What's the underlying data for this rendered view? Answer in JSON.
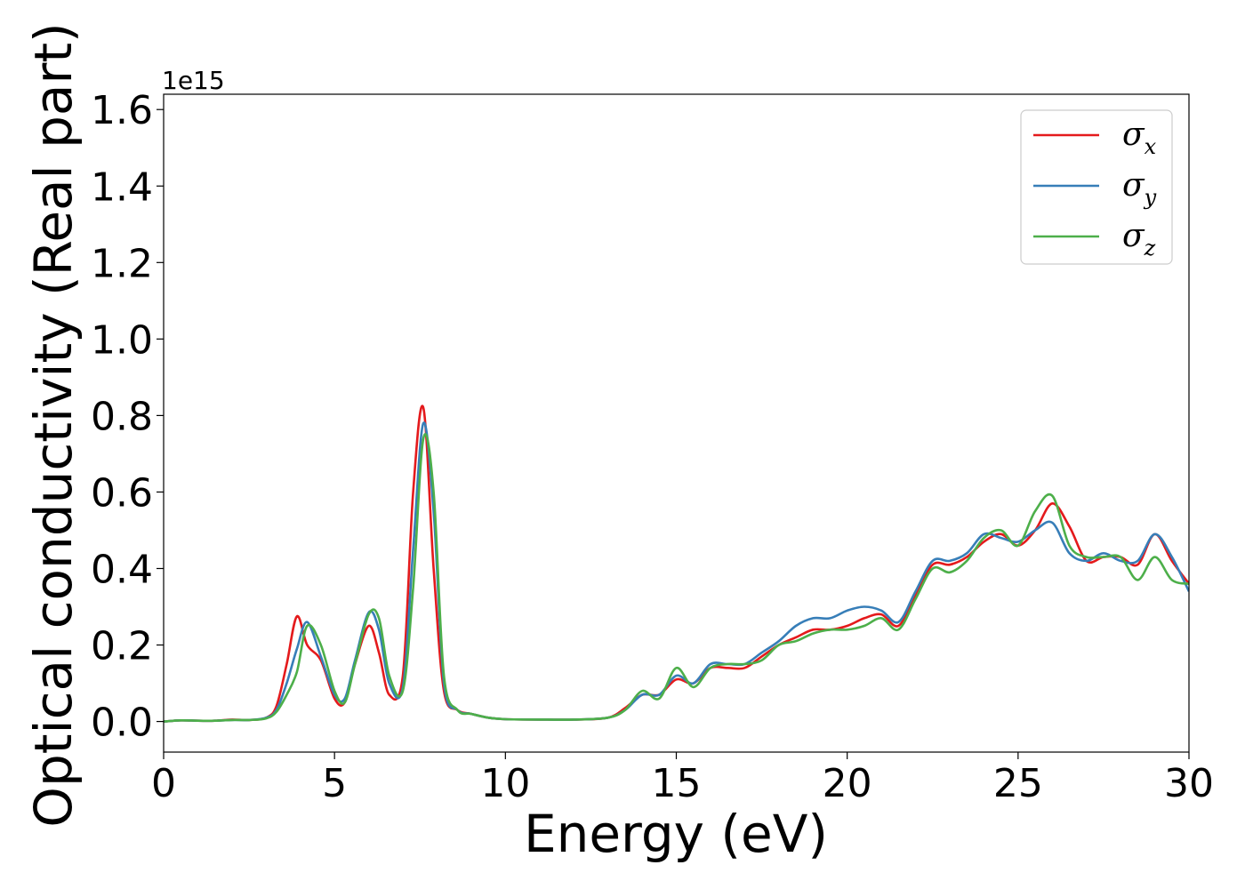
{
  "chart_data": {
    "type": "line",
    "xlabel": "Energy (eV)",
    "ylabel": "Optical conductivity (Real part)",
    "y_offset_text": "1e15",
    "xlim": [
      0,
      30
    ],
    "ylim": [
      -0.08,
      1.64
    ],
    "x_ticks": [
      0,
      5,
      10,
      15,
      20,
      25,
      30
    ],
    "x_tick_labels": [
      "0",
      "5",
      "10",
      "15",
      "20",
      "25",
      "30"
    ],
    "y_ticks": [
      0.0,
      0.2,
      0.4,
      0.6,
      0.8,
      1.0,
      1.2,
      1.4,
      1.6
    ],
    "y_tick_labels": [
      "0.0",
      "0.2",
      "0.4",
      "0.6",
      "0.8",
      "1.0",
      "1.2",
      "1.4",
      "1.6"
    ],
    "grid": false,
    "legend_position": "top-right",
    "x": [
      0,
      0.5,
      1,
      1.5,
      2,
      2.5,
      3,
      3.3,
      3.6,
      3.9,
      4.2,
      4.6,
      5,
      5.3,
      5.6,
      6,
      6.3,
      6.6,
      7,
      7.3,
      7.6,
      7.9,
      8.2,
      8.6,
      9,
      9.5,
      10,
      11,
      12,
      13,
      13.5,
      14,
      14.5,
      15,
      15.5,
      16,
      16.5,
      17,
      17.5,
      18,
      18.5,
      19,
      19.5,
      20,
      20.5,
      21,
      21.5,
      22,
      22.5,
      23,
      23.5,
      24,
      24.5,
      25,
      25.5,
      26,
      26.5,
      27,
      27.5,
      28,
      28.5,
      29,
      29.5,
      30
    ],
    "series": [
      {
        "name": "σ",
        "subscript": "x",
        "color": "#e41a1c",
        "values": [
          0.0,
          0.003,
          0.002,
          0.002,
          0.005,
          0.004,
          0.01,
          0.04,
          0.15,
          0.275,
          0.2,
          0.16,
          0.06,
          0.05,
          0.15,
          0.25,
          0.18,
          0.07,
          0.12,
          0.6,
          0.82,
          0.4,
          0.08,
          0.03,
          0.02,
          0.01,
          0.006,
          0.005,
          0.005,
          0.01,
          0.035,
          0.07,
          0.07,
          0.11,
          0.1,
          0.14,
          0.14,
          0.14,
          0.17,
          0.2,
          0.22,
          0.24,
          0.24,
          0.25,
          0.27,
          0.28,
          0.25,
          0.33,
          0.41,
          0.41,
          0.43,
          0.47,
          0.49,
          0.46,
          0.5,
          0.57,
          0.51,
          0.42,
          0.43,
          0.43,
          0.41,
          0.49,
          0.42,
          0.36
        ]
      },
      {
        "name": "σ",
        "subscript": "y",
        "color": "#377eb8",
        "values": [
          0.0,
          0.003,
          0.002,
          0.002,
          0.004,
          0.004,
          0.01,
          0.03,
          0.1,
          0.19,
          0.26,
          0.17,
          0.07,
          0.06,
          0.16,
          0.285,
          0.24,
          0.1,
          0.09,
          0.45,
          0.78,
          0.55,
          0.1,
          0.03,
          0.02,
          0.01,
          0.006,
          0.005,
          0.005,
          0.01,
          0.03,
          0.07,
          0.07,
          0.12,
          0.1,
          0.15,
          0.15,
          0.15,
          0.18,
          0.21,
          0.25,
          0.27,
          0.27,
          0.29,
          0.3,
          0.29,
          0.26,
          0.34,
          0.42,
          0.42,
          0.44,
          0.49,
          0.48,
          0.47,
          0.5,
          0.52,
          0.44,
          0.42,
          0.44,
          0.42,
          0.42,
          0.49,
          0.43,
          0.34
        ]
      },
      {
        "name": "σ",
        "subscript": "z",
        "color": "#4daf4a",
        "values": [
          0.0,
          0.003,
          0.002,
          0.002,
          0.004,
          0.004,
          0.008,
          0.025,
          0.07,
          0.13,
          0.25,
          0.2,
          0.08,
          0.05,
          0.15,
          0.28,
          0.27,
          0.12,
          0.08,
          0.35,
          0.74,
          0.6,
          0.12,
          0.03,
          0.02,
          0.01,
          0.006,
          0.005,
          0.005,
          0.01,
          0.03,
          0.08,
          0.06,
          0.14,
          0.09,
          0.14,
          0.15,
          0.15,
          0.16,
          0.2,
          0.21,
          0.23,
          0.24,
          0.24,
          0.25,
          0.27,
          0.24,
          0.32,
          0.4,
          0.39,
          0.42,
          0.48,
          0.5,
          0.46,
          0.55,
          0.59,
          0.46,
          0.43,
          0.43,
          0.43,
          0.37,
          0.43,
          0.37,
          0.36
        ]
      }
    ]
  }
}
